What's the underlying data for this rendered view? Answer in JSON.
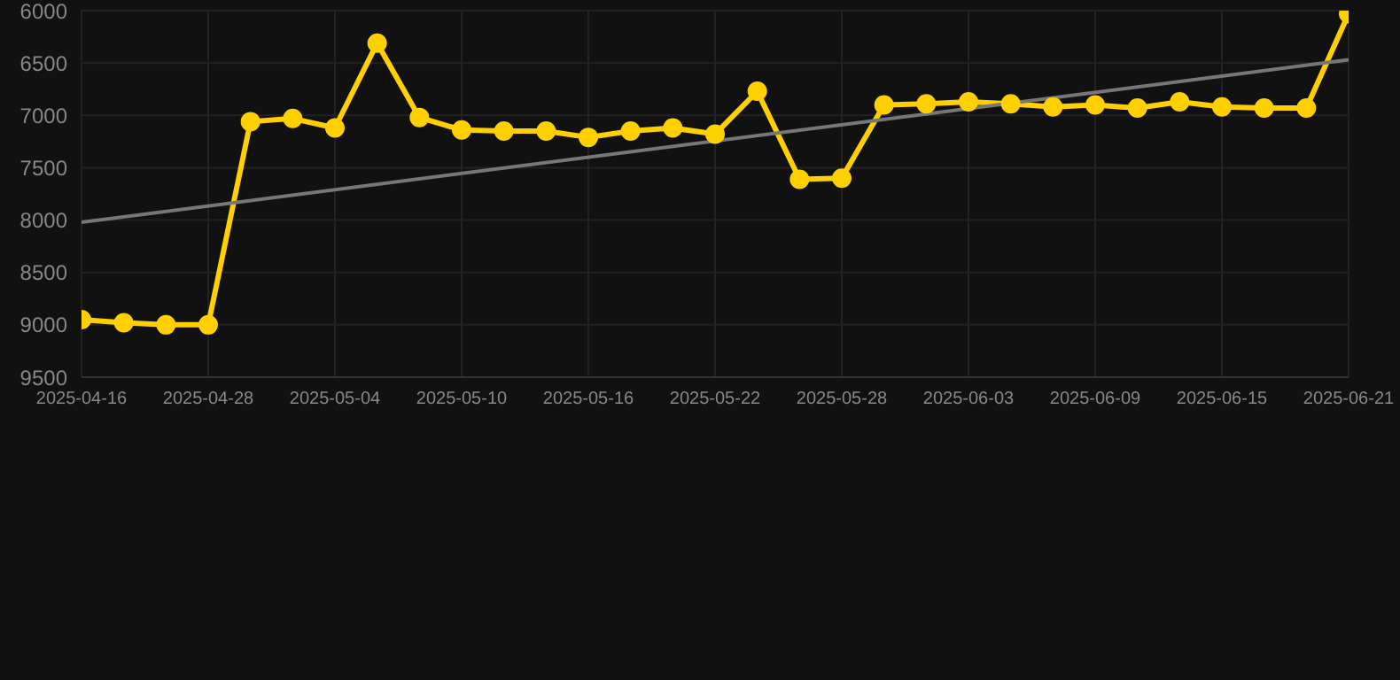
{
  "chart_data": {
    "type": "line",
    "categories": [
      "2025-04-16",
      null,
      null,
      "2025-04-28",
      null,
      null,
      "2025-05-04",
      null,
      null,
      "2025-05-10",
      null,
      null,
      "2025-05-16",
      null,
      null,
      "2025-05-22",
      null,
      null,
      "2025-05-28",
      null,
      null,
      "2025-06-03",
      null,
      null,
      "2025-06-09",
      null,
      null,
      "2025-06-15",
      null,
      null,
      "2025-06-21"
    ],
    "series": [
      {
        "color": "#ffd000",
        "marker": "circle",
        "values": [
          8950,
          8980,
          9000,
          9000,
          7060,
          7030,
          7120,
          6310,
          7020,
          7140,
          7150,
          7150,
          7210,
          7150,
          7120,
          7180,
          6770,
          7610,
          7600,
          6900,
          6890,
          6870,
          6890,
          6920,
          6900,
          6930,
          6870,
          6920,
          6930,
          6930,
          6030
        ]
      },
      {
        "color": "#777777",
        "marker": "none",
        "values": [
          8020,
          null,
          null,
          null,
          null,
          null,
          null,
          null,
          null,
          null,
          null,
          null,
          null,
          null,
          null,
          null,
          null,
          null,
          null,
          null,
          null,
          null,
          null,
          null,
          null,
          null,
          null,
          null,
          null,
          null,
          6470
        ]
      }
    ],
    "ylim": [
      9500,
      6000
    ],
    "yticks": [
      6000,
      6500,
      7000,
      7500,
      8000,
      8500,
      9000,
      9500
    ],
    "grid": true
  }
}
